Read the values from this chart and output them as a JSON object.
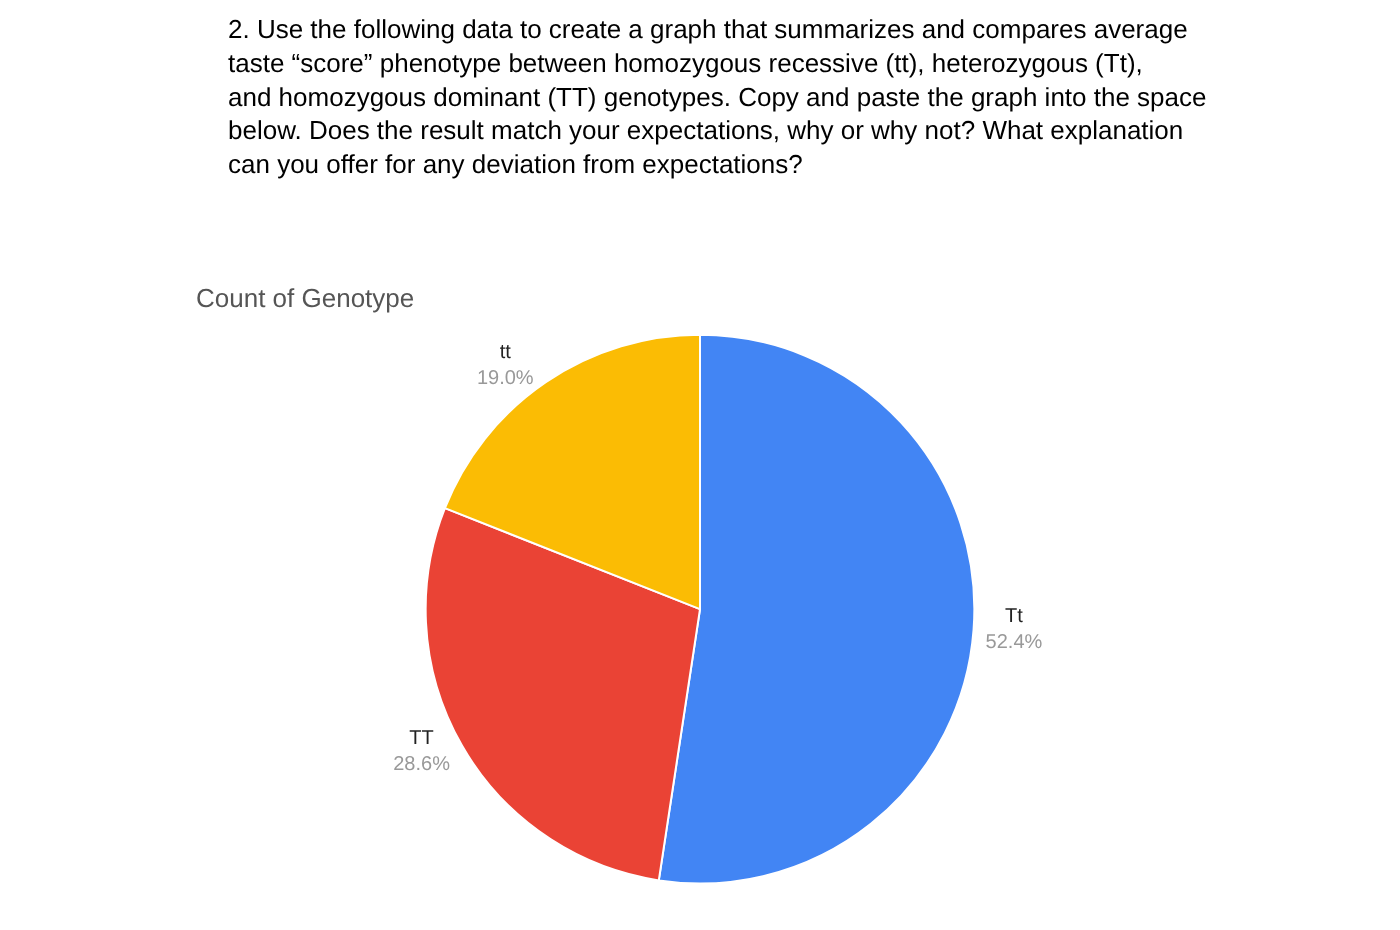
{
  "chart_data": {
    "type": "pie",
    "title": "Count of Genotype",
    "annotations": [
      "2. Use the following data to create a graph that summarizes and compares average taste “score” phenotype between homozygous recessive (tt), heterozygous (Tt), and homozygous dominant (TT) genotypes. Copy and paste the graph into the space below. Does the result match your expectations, why or why not? What explanation can you offer for any deviation from expectations?"
    ],
    "categories": [
      "Tt",
      "TT",
      "tt"
    ],
    "values": [
      52.4,
      28.6,
      19.0
    ],
    "value_labels": [
      "52.4%",
      "28.6%",
      "19.0%"
    ],
    "colors": [
      "#4285f4",
      "#ea4335",
      "#fbbc04"
    ],
    "legend": false
  }
}
